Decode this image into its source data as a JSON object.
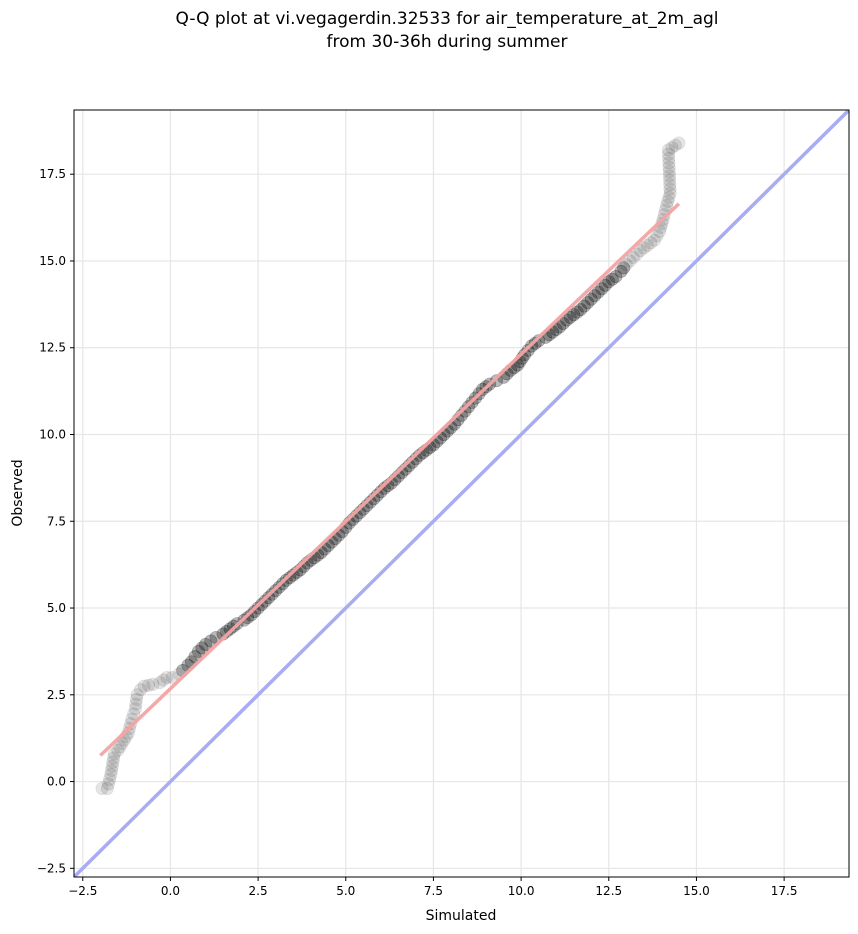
{
  "chart_data": {
    "type": "scatter",
    "title_line1": "Q-Q plot at vi.vegagerdin.32533 for air_temperature_at_2m_agl",
    "title_line2": "from 30-36h during summer",
    "xlabel": "Simulated",
    "ylabel": "Observed",
    "xlim": [
      -2.75,
      19.35
    ],
    "ylim": [
      -2.75,
      19.35
    ],
    "xticks": [
      -2.5,
      0.0,
      2.5,
      5.0,
      7.5,
      10.0,
      12.5,
      15.0,
      17.5
    ],
    "yticks": [
      -2.5,
      0.0,
      2.5,
      5.0,
      7.5,
      10.0,
      12.5,
      15.0,
      17.5
    ],
    "xtick_labels": [
      "−2.5",
      "0.0",
      "2.5",
      "5.0",
      "7.5",
      "10.0",
      "12.5",
      "15.0",
      "17.5"
    ],
    "ytick_labels": [
      "−2.5",
      "0.0",
      "2.5",
      "5.0",
      "7.5",
      "10.0",
      "12.5",
      "15.0",
      "17.5"
    ],
    "grid": true,
    "identity_line": {
      "color": "#a8acf2",
      "from": [
        -2.75,
        -2.75
      ],
      "to": [
        19.35,
        19.35
      ]
    },
    "fit_line": {
      "color": "#f4a3a3",
      "from": [
        -2.0,
        0.75
      ],
      "to": [
        14.5,
        16.65
      ]
    },
    "marker_color": "#000000",
    "series": [
      {
        "points": [
          [
            -1.95,
            -0.2
          ],
          [
            -1.8,
            -0.2
          ],
          [
            -1.7,
            0.2
          ],
          [
            -1.6,
            0.8
          ],
          [
            -1.5,
            0.9
          ],
          [
            -1.2,
            1.4
          ],
          [
            -1.1,
            1.8
          ],
          [
            -1.0,
            2.1
          ],
          [
            -0.95,
            2.5
          ],
          [
            -0.85,
            2.65
          ],
          [
            -0.75,
            2.75
          ],
          [
            -0.5,
            2.8
          ],
          [
            -0.3,
            2.85
          ],
          [
            -0.1,
            3.0
          ],
          [
            0.05,
            3.0
          ],
          [
            0.25,
            3.1
          ],
          [
            0.35,
            3.2
          ],
          [
            0.5,
            3.35
          ],
          [
            0.6,
            3.45
          ],
          [
            0.7,
            3.6
          ],
          [
            0.8,
            3.75
          ],
          [
            0.9,
            3.85
          ],
          [
            1.0,
            3.95
          ],
          [
            1.15,
            4.05
          ],
          [
            1.3,
            4.15
          ],
          [
            1.5,
            4.25
          ],
          [
            1.7,
            4.4
          ],
          [
            1.9,
            4.55
          ],
          [
            2.1,
            4.65
          ],
          [
            2.3,
            4.8
          ],
          [
            2.5,
            5.0
          ],
          [
            2.7,
            5.2
          ],
          [
            2.9,
            5.4
          ],
          [
            3.1,
            5.6
          ],
          [
            3.3,
            5.8
          ],
          [
            3.5,
            5.95
          ],
          [
            3.7,
            6.1
          ],
          [
            3.9,
            6.3
          ],
          [
            4.1,
            6.45
          ],
          [
            4.3,
            6.6
          ],
          [
            4.5,
            6.8
          ],
          [
            4.7,
            7.0
          ],
          [
            4.9,
            7.2
          ],
          [
            5.1,
            7.45
          ],
          [
            5.3,
            7.65
          ],
          [
            5.5,
            7.85
          ],
          [
            5.7,
            8.05
          ],
          [
            5.9,
            8.25
          ],
          [
            6.1,
            8.45
          ],
          [
            6.3,
            8.6
          ],
          [
            6.5,
            8.8
          ],
          [
            6.7,
            9.0
          ],
          [
            6.9,
            9.2
          ],
          [
            7.1,
            9.4
          ],
          [
            7.3,
            9.55
          ],
          [
            7.5,
            9.7
          ],
          [
            7.7,
            9.9
          ],
          [
            7.9,
            10.1
          ],
          [
            8.1,
            10.3
          ],
          [
            8.3,
            10.55
          ],
          [
            8.5,
            10.8
          ],
          [
            8.7,
            11.05
          ],
          [
            8.9,
            11.3
          ],
          [
            9.1,
            11.45
          ],
          [
            9.3,
            11.55
          ],
          [
            9.5,
            11.65
          ],
          [
            9.7,
            11.85
          ],
          [
            9.9,
            12.0
          ],
          [
            10.1,
            12.3
          ],
          [
            10.3,
            12.55
          ],
          [
            10.5,
            12.7
          ],
          [
            10.7,
            12.8
          ],
          [
            10.9,
            12.95
          ],
          [
            11.1,
            13.1
          ],
          [
            11.3,
            13.3
          ],
          [
            11.5,
            13.45
          ],
          [
            11.7,
            13.6
          ],
          [
            11.9,
            13.8
          ],
          [
            12.1,
            14.0
          ],
          [
            12.3,
            14.2
          ],
          [
            12.5,
            14.4
          ],
          [
            12.7,
            14.55
          ],
          [
            12.85,
            14.7
          ],
          [
            13.0,
            14.9
          ],
          [
            13.2,
            15.1
          ],
          [
            13.4,
            15.3
          ],
          [
            13.6,
            15.45
          ],
          [
            13.8,
            15.6
          ],
          [
            13.95,
            15.85
          ],
          [
            14.05,
            16.2
          ],
          [
            14.15,
            16.6
          ],
          [
            14.25,
            16.95
          ],
          [
            14.2,
            18.2
          ],
          [
            14.5,
            18.4
          ]
        ]
      }
    ]
  }
}
